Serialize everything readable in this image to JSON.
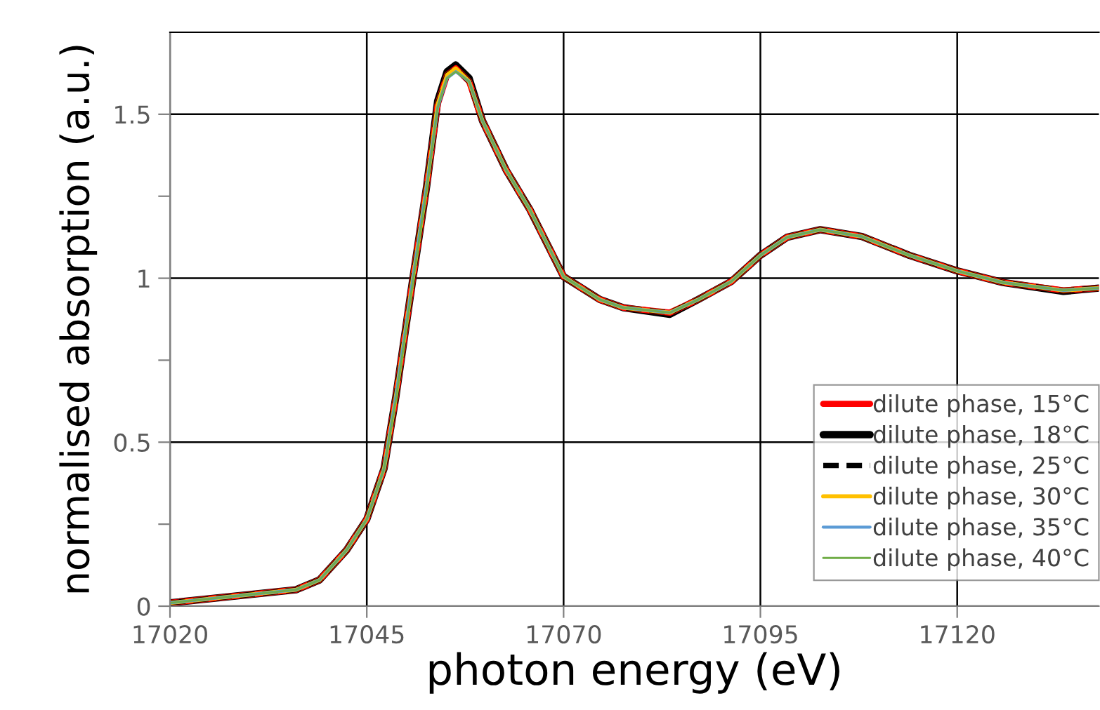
{
  "chart_data": {
    "type": "line",
    "xlabel": "photon energy (eV)",
    "ylabel": "normalised absorption (a.u.)",
    "x": [
      17020,
      17036,
      17039,
      17042.4,
      17045,
      17047.2,
      17048.7,
      17050.8,
      17052.6,
      17054,
      17055.2,
      17056.3,
      17058,
      17059.7,
      17062.7,
      17065.7,
      17070,
      17074.6,
      17077.6,
      17083.5,
      17087.1,
      17091.3,
      17095,
      17098.4,
      17102.6,
      17107.9,
      17113.9,
      17119.9,
      17125.8,
      17133.5,
      17138
    ],
    "xlim": [
      17020,
      17138
    ],
    "xticks": [
      17020,
      17045,
      17070,
      17095,
      17120
    ],
    "ylim": [
      0,
      1.75
    ],
    "yticks": [
      0,
      {
        "value": 0.25,
        "label": null
      },
      0.5,
      {
        "value": 0.75,
        "label": null
      },
      1,
      {
        "value": 1.25,
        "label": null
      },
      1.5
    ],
    "grid": true,
    "legend": "bottom right",
    "marker": "none",
    "line_style": "solid",
    "series": [
      {
        "name": "dilute phase, 15°C",
        "color": "#ff0000",
        "values": [
          0.01,
          0.05,
          0.08,
          0.17,
          0.265,
          0.42,
          0.64,
          0.99,
          1.28,
          1.53,
          1.62,
          1.64,
          1.6,
          1.48,
          1.33,
          1.21,
          1.005,
          0.935,
          0.91,
          0.895,
          0.935,
          0.99,
          1.07,
          1.125,
          1.148,
          1.127,
          1.07,
          1.023,
          0.987,
          0.963,
          0.97
        ]
      },
      {
        "name": "dilute phase, 18°C",
        "color": "#000000",
        "values": [
          0.01,
          0.05,
          0.08,
          0.17,
          0.265,
          0.42,
          0.64,
          0.99,
          1.28,
          1.54,
          1.63,
          1.65,
          1.61,
          1.48,
          1.33,
          1.21,
          1.005,
          0.935,
          0.91,
          0.89,
          0.935,
          0.99,
          1.07,
          1.125,
          1.148,
          1.127,
          1.07,
          1.023,
          0.987,
          0.96,
          0.97
        ]
      },
      {
        "name": "dilute phase, 25°C",
        "color": "#000000",
        "line_style": "dashed",
        "values": [
          0.01,
          0.05,
          0.08,
          0.17,
          0.265,
          0.42,
          0.64,
          0.99,
          1.28,
          1.53,
          1.62,
          1.64,
          1.6,
          1.48,
          1.33,
          1.21,
          1.005,
          0.935,
          0.91,
          0.895,
          0.935,
          0.99,
          1.07,
          1.125,
          1.148,
          1.127,
          1.07,
          1.023,
          0.987,
          0.963,
          0.97
        ]
      },
      {
        "name": "dilute phase, 30°C",
        "color": "#ffc000",
        "values": [
          0.01,
          0.05,
          0.08,
          0.17,
          0.265,
          0.42,
          0.64,
          0.99,
          1.28,
          1.53,
          1.62,
          1.64,
          1.6,
          1.48,
          1.33,
          1.21,
          1.005,
          0.935,
          0.91,
          0.895,
          0.935,
          0.99,
          1.07,
          1.125,
          1.148,
          1.127,
          1.07,
          1.023,
          0.987,
          0.963,
          0.97
        ]
      },
      {
        "name": "dilute phase, 35°C",
        "color": "#5b9bd5",
        "values": [
          0.01,
          0.05,
          0.08,
          0.17,
          0.265,
          0.42,
          0.64,
          0.99,
          1.28,
          1.52,
          1.61,
          1.63,
          1.6,
          1.48,
          1.33,
          1.21,
          1.005,
          0.935,
          0.91,
          0.895,
          0.935,
          0.99,
          1.07,
          1.125,
          1.148,
          1.127,
          1.07,
          1.023,
          0.987,
          0.963,
          0.97
        ]
      },
      {
        "name": "dilute phase, 40°C",
        "color": "#70ad47",
        "values": [
          0.01,
          0.05,
          0.08,
          0.17,
          0.265,
          0.42,
          0.63,
          0.98,
          1.27,
          1.52,
          1.61,
          1.63,
          1.6,
          1.48,
          1.33,
          1.21,
          1.005,
          0.935,
          0.91,
          0.895,
          0.935,
          0.99,
          1.07,
          1.125,
          1.148,
          1.127,
          1.07,
          1.023,
          0.987,
          0.963,
          0.97
        ]
      }
    ]
  }
}
